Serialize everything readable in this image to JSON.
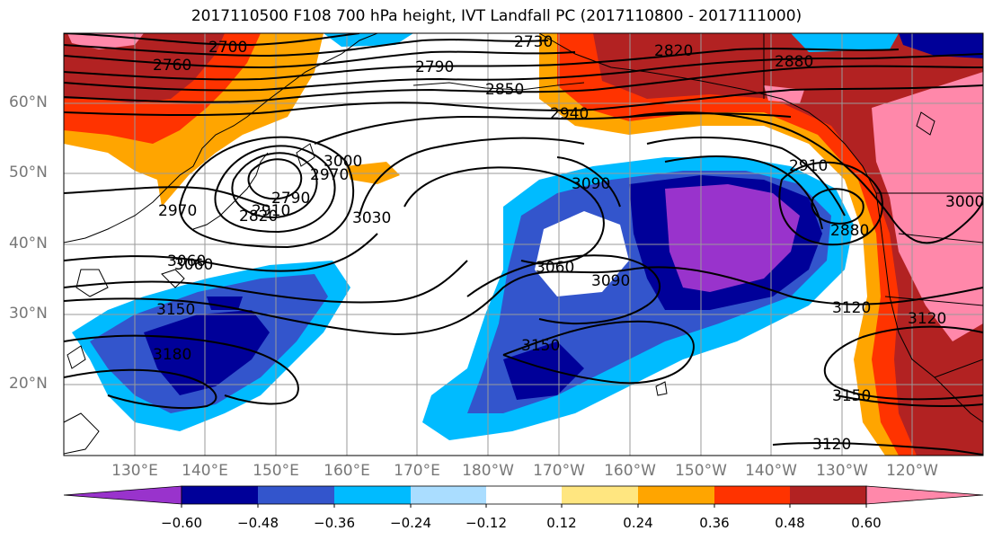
{
  "title": "2017110500 F108 700 hPa height, IVT Landfall PC (2017110800 - 2017111000)",
  "lat_labels": [
    "60°N",
    "50°N",
    "40°N",
    "30°N",
    "20°N"
  ],
  "lon_labels": [
    "130°E",
    "140°E",
    "150°E",
    "160°E",
    "170°E",
    "180°W",
    "170°W",
    "160°W",
    "150°W",
    "140°W",
    "130°W",
    "120°W"
  ],
  "contour_labels": [
    "2700",
    "2730",
    "2760",
    "2790",
    "2820",
    "2850",
    "2880",
    "2910",
    "2940",
    "2970",
    "3000",
    "3030",
    "3060",
    "3090",
    "3120",
    "3150",
    "3180",
    "2910",
    "2880",
    "3090",
    "3060",
    "3150",
    "3120",
    "2790",
    "2820",
    "3060",
    "3150",
    "2970",
    "3000",
    "3120"
  ],
  "colorbar": {
    "ticks": [
      "−0.60",
      "−0.48",
      "−0.36",
      "−0.24",
      "−0.12",
      "0.12",
      "0.24",
      "0.36",
      "0.48",
      "0.60"
    ],
    "colors": [
      "#9933cc",
      "#000099",
      "#3355cc",
      "#00bbff",
      "#aaddff",
      "#ffffff",
      "#ffe680",
      "#ffa500",
      "#ff3300",
      "#b22222",
      "#ff88aa"
    ]
  },
  "chart_data": {
    "type": "heatmap",
    "title": "2017110500 F108 700 hPa height, IVT Landfall PC (2017110800 - 2017111000)",
    "contour_variable": "700 hPa height",
    "contour_levels": [
      2700,
      2730,
      2760,
      2790,
      2820,
      2850,
      2880,
      2910,
      2940,
      2970,
      3000,
      3030,
      3060,
      3090,
      3120,
      3150,
      3180
    ],
    "fill_variable": "IVT Landfall PC",
    "fill_levels": [
      -0.6,
      -0.48,
      -0.36,
      -0.24,
      -0.12,
      0.12,
      0.24,
      0.36,
      0.48,
      0.6
    ],
    "lat_range": [
      10,
      70
    ],
    "lon_range_deg_east": [
      120,
      250
    ],
    "grid": true,
    "colorbar_extend": "both"
  }
}
